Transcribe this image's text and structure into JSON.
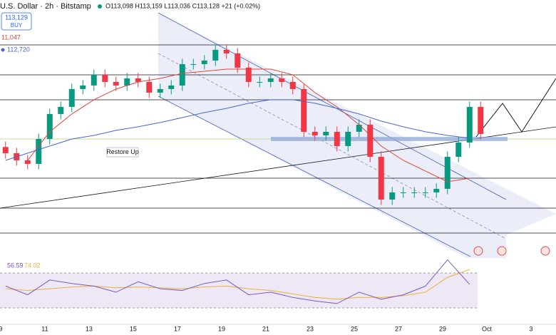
{
  "chart_data": {
    "type": "candlestick",
    "header": "U.S. Dollar · 2h · Bitstamp",
    "ohlc_text": "O113,098 H113,159 L113,036 C113,128 +21 (+0.02%)",
    "buy_price": "113,129",
    "buy_label": "BUY",
    "annotation": "Restore Up",
    "ylim": [
      106448,
      120648
    ],
    "xlim": [
      8.97,
      34.13
    ],
    "xticks": [
      9,
      11,
      13,
      15,
      17,
      19,
      21,
      23,
      25,
      27,
      29,
      {
        "value": 31,
        "label": "Oct"
      },
      {
        "value": 33,
        "label": "3"
      }
    ],
    "up_color": "#089981",
    "down_color": "#f23645",
    "open": [
      112400,
      112050,
      111650,
      111450,
      112850,
      114250,
      114650,
      115650,
      115850,
      116450,
      116050,
      115850,
      116250,
      116050,
      115450,
      115650,
      115850,
      117050,
      117050,
      117250,
      117850,
      117650,
      116850,
      116050,
      116050,
      116250,
      116050,
      115650,
      113250,
      113050,
      113250,
      112450,
      113250,
      113650,
      111850,
      109450,
      109850,
      109850,
      109850,
      109850,
      110050,
      111850,
      112650,
      114650
    ],
    "high": [
      112700,
      112350,
      111950,
      113150,
      114550,
      114950,
      115950,
      116150,
      116750,
      116750,
      116350,
      116550,
      116550,
      116350,
      115950,
      116150,
      117350,
      117350,
      117550,
      118150,
      118150,
      117950,
      117150,
      116350,
      116550,
      116550,
      116350,
      115950,
      113550,
      113550,
      113550,
      113550,
      113950,
      113950,
      112150,
      110150,
      110150,
      110150,
      110150,
      110350,
      112150,
      112950,
      114950,
      114950
    ],
    "low": [
      111750,
      111350,
      111150,
      111150,
      112550,
      113950,
      114350,
      115350,
      115550,
      115750,
      115550,
      115550,
      115750,
      115150,
      115150,
      115350,
      115550,
      116750,
      116750,
      116950,
      117350,
      116550,
      115750,
      115750,
      115750,
      115750,
      115350,
      112950,
      112750,
      112750,
      112150,
      112150,
      112950,
      111550,
      109150,
      109150,
      109550,
      109550,
      109550,
      109550,
      109750,
      111550,
      112350,
      112830
    ],
    "close": [
      112050,
      111650,
      111450,
      112850,
      114250,
      114650,
      115650,
      115850,
      116450,
      116050,
      115850,
      116250,
      116050,
      115450,
      115650,
      115850,
      117050,
      117050,
      117250,
      117850,
      117650,
      116850,
      116050,
      116050,
      116250,
      116050,
      115650,
      113250,
      113050,
      113250,
      112450,
      113250,
      113650,
      111850,
      109450,
      109850,
      109850,
      109850,
      109850,
      110050,
      111850,
      112650,
      114650,
      113130
    ],
    "moving_averages": [
      {
        "name": "11,047",
        "color": "#e0463c",
        "values": [
          null,
          111650,
          113250,
          114250,
          115050,
          115650,
          116050,
          116250,
          116530,
          116650,
          116770,
          116770,
          116770,
          116450,
          115450,
          114650,
          113650,
          112450,
          111650,
          111050,
          110450,
          110650
        ]
      },
      {
        "name": "112,720",
        "color": "#4a68c8",
        "values": [
          111650,
          112050,
          112450,
          112850,
          113050,
          113330,
          113530,
          113770,
          114050,
          114330,
          114570,
          114850,
          115050,
          115050,
          114850,
          114570,
          114250,
          113850,
          113530,
          113250,
          113050,
          112890
        ]
      }
    ],
    "rsi_ylim": [
      0,
      100
    ],
    "rsi": {
      "name": "56.59",
      "color": "#7e57c2",
      "values": [
        55,
        45,
        62,
        58,
        55,
        48,
        60,
        52,
        50,
        58,
        62,
        45,
        48,
        42,
        38,
        35,
        48,
        40,
        45,
        55,
        85,
        57
      ]
    },
    "rsi_ma": {
      "name": "74.02",
      "color": "#e8b33c",
      "values": [
        52,
        50,
        52,
        54,
        55,
        53,
        54,
        53,
        52,
        54,
        55,
        52,
        50,
        46,
        42,
        40,
        42,
        42,
        44,
        48,
        65,
        74
      ]
    }
  }
}
